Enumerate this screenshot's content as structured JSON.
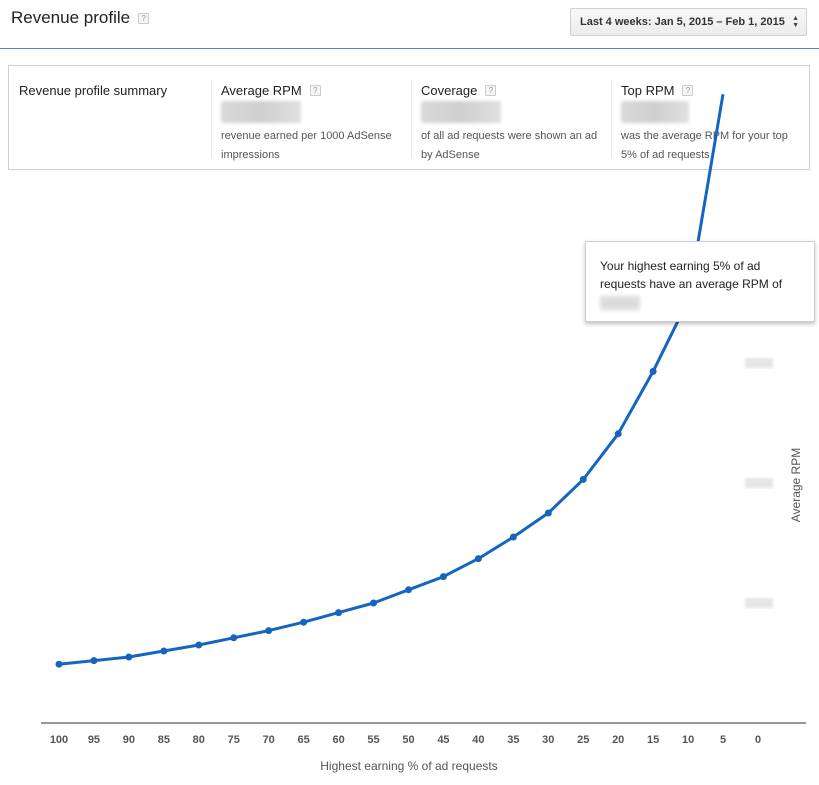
{
  "header": {
    "title": "Revenue profile",
    "help_glyph": "?",
    "date_range_label": "Last 4 weeks: Jan 5, 2015 – Feb 1, 2015"
  },
  "summary": {
    "label": "Revenue profile summary",
    "columns": [
      {
        "title": "Average RPM",
        "description": "revenue earned per 1000 AdSense impressions"
      },
      {
        "title": "Coverage",
        "description": "of all ad requests were shown an ad by AdSense"
      },
      {
        "title": "Top RPM",
        "description": "was the average RPM for your top 5% of ad requests"
      }
    ]
  },
  "tooltip": {
    "text": "Your highest earning 5% of ad requests have an average RPM of"
  },
  "colors": {
    "line": "#1565c0",
    "rule": "#4a86c5"
  },
  "chart_data": {
    "type": "line",
    "xlabel": "Highest earning % of ad requests",
    "ylabel": "Average RPM",
    "x_ticks": [
      "100",
      "95",
      "90",
      "85",
      "80",
      "75",
      "70",
      "65",
      "60",
      "55",
      "50",
      "45",
      "40",
      "35",
      "30",
      "25",
      "20",
      "15",
      "10",
      "5",
      "0"
    ],
    "x_reversed": true,
    "y_tick_labels_hidden": true,
    "series": [
      {
        "x": [
          100,
          95,
          90,
          85,
          80,
          75,
          70,
          65,
          60,
          55,
          50,
          45,
          40,
          35,
          30,
          25,
          20,
          15,
          10,
          5
        ],
        "y": [
          0.49,
          0.52,
          0.55,
          0.6,
          0.65,
          0.71,
          0.77,
          0.84,
          0.92,
          1.0,
          1.11,
          1.22,
          1.37,
          1.55,
          1.75,
          2.03,
          2.41,
          2.93,
          3.52,
          5.24
        ]
      }
    ],
    "grid": false
  }
}
